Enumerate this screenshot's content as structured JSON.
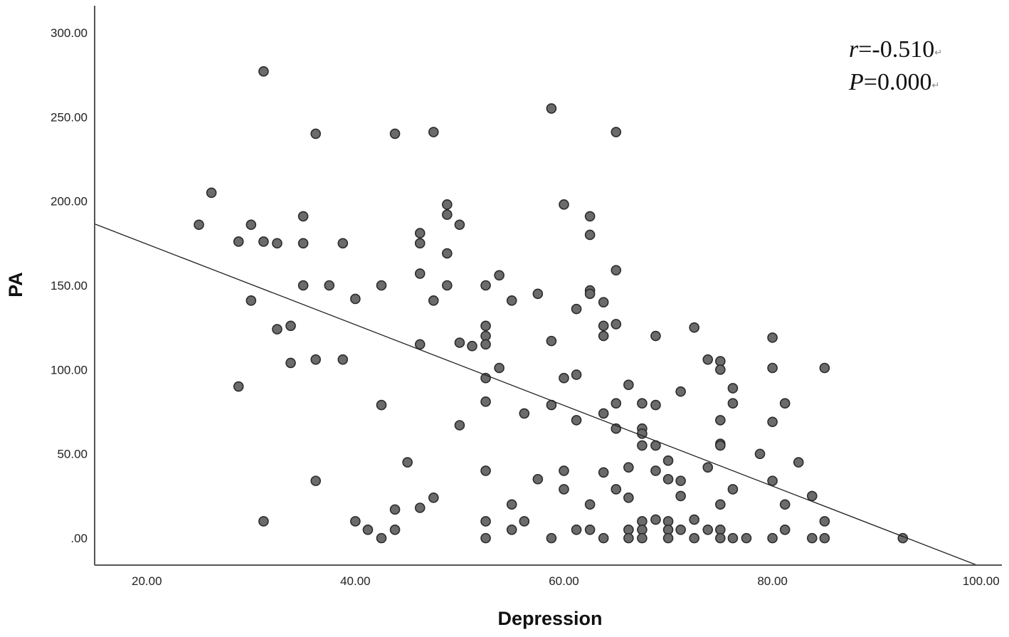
{
  "chart_data": {
    "type": "scatter",
    "xlabel": "Depression",
    "ylabel": "PA",
    "xlim": [
      15,
      102
    ],
    "ylim": [
      -16,
      316
    ],
    "x_ticks": [
      "20.00",
      "40.00",
      "60.00",
      "80.00",
      "100.00"
    ],
    "y_ticks": [
      ".00",
      "50.00",
      "100.00",
      "150.00",
      "200.00",
      "250.00",
      "300.00"
    ],
    "grid": false,
    "point_color": "#6b6b6b",
    "point_edge_color": "#2b2b2b",
    "fit_line": {
      "x": [
        15,
        99.6
      ],
      "y": [
        186.5,
        -16
      ]
    },
    "annotation": {
      "r_label": "r",
      "r_value": "=-0.510",
      "p_label": "P",
      "p_value": "=0.000",
      "mark": "↵"
    },
    "points": [
      [
        25,
        186
      ],
      [
        26.2,
        205
      ],
      [
        28.8,
        176
      ],
      [
        28.8,
        90
      ],
      [
        30,
        186
      ],
      [
        30,
        141
      ],
      [
        31.2,
        277
      ],
      [
        31.2,
        176
      ],
      [
        31.2,
        10
      ],
      [
        32.5,
        175
      ],
      [
        32.5,
        124
      ],
      [
        33.8,
        126
      ],
      [
        33.8,
        104
      ],
      [
        35,
        191
      ],
      [
        35,
        175
      ],
      [
        35,
        150
      ],
      [
        36.2,
        240
      ],
      [
        36.2,
        106
      ],
      [
        36.2,
        34
      ],
      [
        37.5,
        150
      ],
      [
        38.8,
        175
      ],
      [
        38.8,
        106
      ],
      [
        40,
        142
      ],
      [
        40,
        10
      ],
      [
        41.2,
        5
      ],
      [
        42.5,
        150
      ],
      [
        42.5,
        79
      ],
      [
        42.5,
        0
      ],
      [
        43.8,
        240
      ],
      [
        43.8,
        17
      ],
      [
        43.8,
        5
      ],
      [
        45,
        45
      ],
      [
        46.2,
        181
      ],
      [
        46.2,
        175
      ],
      [
        46.2,
        157
      ],
      [
        46.2,
        115
      ],
      [
        46.2,
        18
      ],
      [
        47.5,
        241
      ],
      [
        47.5,
        141
      ],
      [
        47.5,
        24
      ],
      [
        48.8,
        198
      ],
      [
        48.8,
        192
      ],
      [
        48.8,
        169
      ],
      [
        48.8,
        150
      ],
      [
        50,
        186
      ],
      [
        50,
        116
      ],
      [
        50,
        67
      ],
      [
        51.2,
        114
      ],
      [
        52.5,
        150
      ],
      [
        52.5,
        126
      ],
      [
        52.5,
        120
      ],
      [
        52.5,
        115
      ],
      [
        52.5,
        95
      ],
      [
        52.5,
        81
      ],
      [
        52.5,
        40
      ],
      [
        52.5,
        10
      ],
      [
        52.5,
        0
      ],
      [
        53.8,
        156
      ],
      [
        53.8,
        101
      ],
      [
        55,
        141
      ],
      [
        55,
        20
      ],
      [
        55,
        5
      ],
      [
        56.2,
        74
      ],
      [
        56.2,
        10
      ],
      [
        57.5,
        145
      ],
      [
        57.5,
        35
      ],
      [
        58.8,
        255
      ],
      [
        58.8,
        117
      ],
      [
        58.8,
        79
      ],
      [
        58.8,
        0
      ],
      [
        60,
        198
      ],
      [
        60,
        95
      ],
      [
        60,
        40
      ],
      [
        60,
        29
      ],
      [
        61.2,
        136
      ],
      [
        61.2,
        97
      ],
      [
        61.2,
        70
      ],
      [
        61.2,
        5
      ],
      [
        62.5,
        191
      ],
      [
        62.5,
        180
      ],
      [
        62.5,
        147
      ],
      [
        62.5,
        145
      ],
      [
        62.5,
        20
      ],
      [
        62.5,
        5
      ],
      [
        63.8,
        140
      ],
      [
        63.8,
        126
      ],
      [
        63.8,
        120
      ],
      [
        63.8,
        74
      ],
      [
        63.8,
        39
      ],
      [
        63.8,
        0
      ],
      [
        65,
        241
      ],
      [
        65,
        159
      ],
      [
        65,
        127
      ],
      [
        65,
        80
      ],
      [
        65,
        65
      ],
      [
        65,
        29
      ],
      [
        66.2,
        91
      ],
      [
        66.2,
        42
      ],
      [
        66.2,
        24
      ],
      [
        66.2,
        5
      ],
      [
        66.2,
        0
      ],
      [
        67.5,
        80
      ],
      [
        67.5,
        65
      ],
      [
        67.5,
        62
      ],
      [
        67.5,
        55
      ],
      [
        67.5,
        10
      ],
      [
        67.5,
        5
      ],
      [
        67.5,
        0
      ],
      [
        68.8,
        120
      ],
      [
        68.8,
        79
      ],
      [
        68.8,
        55
      ],
      [
        68.8,
        40
      ],
      [
        68.8,
        11
      ],
      [
        70,
        46
      ],
      [
        70,
        35
      ],
      [
        70,
        10
      ],
      [
        70,
        5
      ],
      [
        70,
        0
      ],
      [
        71.2,
        87
      ],
      [
        71.2,
        34
      ],
      [
        71.2,
        25
      ],
      [
        71.2,
        5
      ],
      [
        72.5,
        125
      ],
      [
        72.5,
        11
      ],
      [
        72.5,
        0
      ],
      [
        73.8,
        106
      ],
      [
        73.8,
        42
      ],
      [
        73.8,
        5
      ],
      [
        75,
        105
      ],
      [
        75,
        100
      ],
      [
        75,
        70
      ],
      [
        75,
        56
      ],
      [
        75,
        55
      ],
      [
        75,
        20
      ],
      [
        75,
        5
      ],
      [
        75,
        0
      ],
      [
        76.2,
        89
      ],
      [
        76.2,
        80
      ],
      [
        76.2,
        29
      ],
      [
        76.2,
        0
      ],
      [
        77.5,
        0
      ],
      [
        78.8,
        50
      ],
      [
        80,
        119
      ],
      [
        80,
        101
      ],
      [
        80,
        69
      ],
      [
        80,
        34
      ],
      [
        80,
        0
      ],
      [
        81.2,
        80
      ],
      [
        81.2,
        20
      ],
      [
        81.2,
        5
      ],
      [
        82.5,
        45
      ],
      [
        83.8,
        25
      ],
      [
        83.8,
        0
      ],
      [
        85,
        101
      ],
      [
        85,
        10
      ],
      [
        85,
        0
      ],
      [
        92.5,
        0
      ]
    ]
  }
}
